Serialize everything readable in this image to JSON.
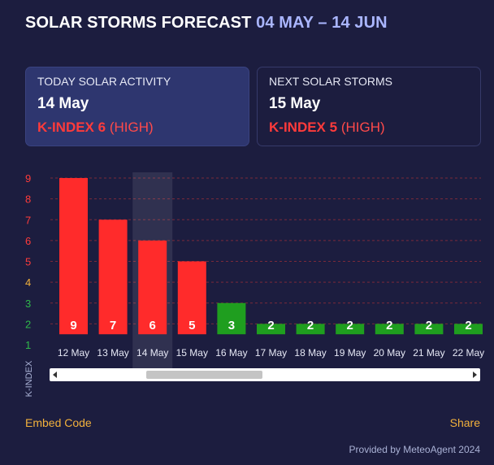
{
  "header": {
    "title": "SOLAR STORMS FORECAST",
    "range": "04 MAY – 14 JUN"
  },
  "cards": {
    "today": {
      "label": "TODAY SOLAR ACTIVITY",
      "date": "14 May",
      "kindex": "K-INDEX 6",
      "severity": "(HIGH)"
    },
    "next": {
      "label": "NEXT SOLAR STORMS",
      "date": "15 May",
      "kindex": "K-INDEX 5",
      "severity": "(HIGH)"
    }
  },
  "chart_data": {
    "type": "bar",
    "categories": [
      "12 May",
      "13 May",
      "14 May",
      "15 May",
      "16 May",
      "17 May",
      "18 May",
      "19 May",
      "20 May",
      "21 May",
      "22 May"
    ],
    "values": [
      9,
      7,
      6,
      5,
      3,
      2,
      2,
      2,
      2,
      2,
      2
    ],
    "ylabel": "K-INDEX",
    "yticks": [
      1,
      2,
      3,
      4,
      5,
      6,
      7,
      8,
      9
    ],
    "ylim": [
      1,
      9
    ],
    "highlighted_category": "14 May",
    "colors": {
      "high": "#ff2b2b",
      "low": "#1f9e1f",
      "tick_high": "#ff3b3b",
      "tick_mid": "#f2b13c",
      "tick_low": "#2fb84a",
      "grid": "#7a2a3a"
    }
  },
  "footer": {
    "embed": "Embed Code",
    "share": "Share",
    "provided": "Provided by MeteoAgent 2024"
  }
}
